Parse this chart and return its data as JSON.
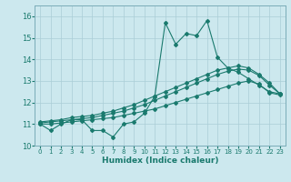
{
  "xlabel": "Humidex (Indice chaleur)",
  "ylabel": "",
  "xlim": [
    -0.5,
    23.5
  ],
  "ylim": [
    10,
    16.5
  ],
  "yticks": [
    10,
    11,
    12,
    13,
    14,
    15,
    16
  ],
  "xticks": [
    0,
    1,
    2,
    3,
    4,
    5,
    6,
    7,
    8,
    9,
    10,
    11,
    12,
    13,
    14,
    15,
    16,
    17,
    18,
    19,
    20,
    21,
    22,
    23
  ],
  "bg_color": "#cce8ee",
  "grid_color": "#aacdd6",
  "line_color": "#1a7a6e",
  "line1": [
    11.0,
    10.7,
    11.0,
    11.2,
    11.2,
    10.7,
    10.7,
    10.4,
    11.0,
    11.1,
    11.5,
    12.3,
    15.7,
    14.7,
    15.2,
    15.1,
    15.8,
    14.1,
    13.6,
    13.4,
    13.1,
    12.8,
    12.5,
    12.4
  ],
  "line2": [
    11.0,
    11.0,
    11.05,
    11.1,
    11.15,
    11.2,
    11.25,
    11.3,
    11.4,
    11.5,
    11.6,
    11.7,
    11.85,
    12.0,
    12.15,
    12.3,
    12.45,
    12.6,
    12.75,
    12.9,
    13.0,
    12.85,
    12.45,
    12.35
  ],
  "line3": [
    11.05,
    11.1,
    11.15,
    11.2,
    11.25,
    11.3,
    11.4,
    11.5,
    11.6,
    11.75,
    11.9,
    12.1,
    12.3,
    12.5,
    12.7,
    12.9,
    13.1,
    13.3,
    13.45,
    13.55,
    13.5,
    13.25,
    12.8,
    12.4
  ],
  "line4": [
    11.1,
    11.15,
    11.2,
    11.3,
    11.35,
    11.4,
    11.5,
    11.6,
    11.75,
    11.9,
    12.1,
    12.3,
    12.5,
    12.7,
    12.9,
    13.1,
    13.3,
    13.5,
    13.6,
    13.7,
    13.6,
    13.3,
    12.9,
    12.4
  ]
}
